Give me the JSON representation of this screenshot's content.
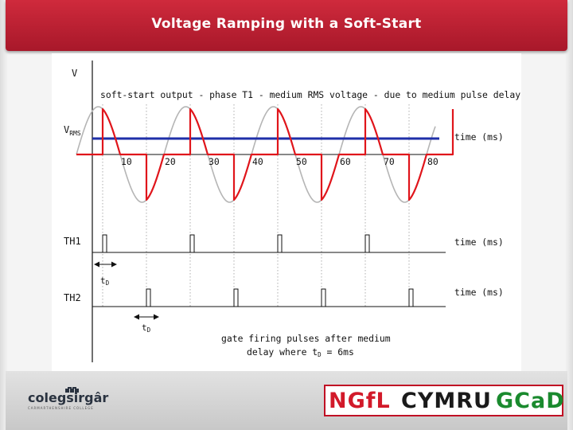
{
  "slide": {
    "title": "Voltage Ramping with a Soft-Start"
  },
  "diagram": {
    "y_axis_label": "V",
    "caption": "soft-start output - phase T1 - medium RMS voltage - due to medium pulse delay",
    "vrms_label_main": "V",
    "vrms_label_sub": "RMS",
    "time_label": "time (ms)",
    "time_ticks": [
      "10",
      "20",
      "30",
      "40",
      "50",
      "60",
      "70",
      "80"
    ],
    "th1_label": "TH1",
    "th2_label": "TH2",
    "td_label_main": "t",
    "td_label_sub": "D",
    "note_line1": "gate firing pulses after medium",
    "note_line2": "delay where t",
    "note_line2_sub": "D",
    "note_line2_end": " = 6ms",
    "pulse_delay_ms": 6,
    "colors": {
      "output": "#e0151b",
      "vrms": "#1f2fa8",
      "sine": "#b5b5b5",
      "axis": "#111111"
    }
  },
  "footer": {
    "left_logo_text": "colegsirgâr",
    "left_logo_sub": "CARMARTHENSHIRE COLLEGE",
    "ngfl_text": "NGfL",
    "cymru_text": "CYMRU",
    "gcad_text": "GCaD"
  }
}
